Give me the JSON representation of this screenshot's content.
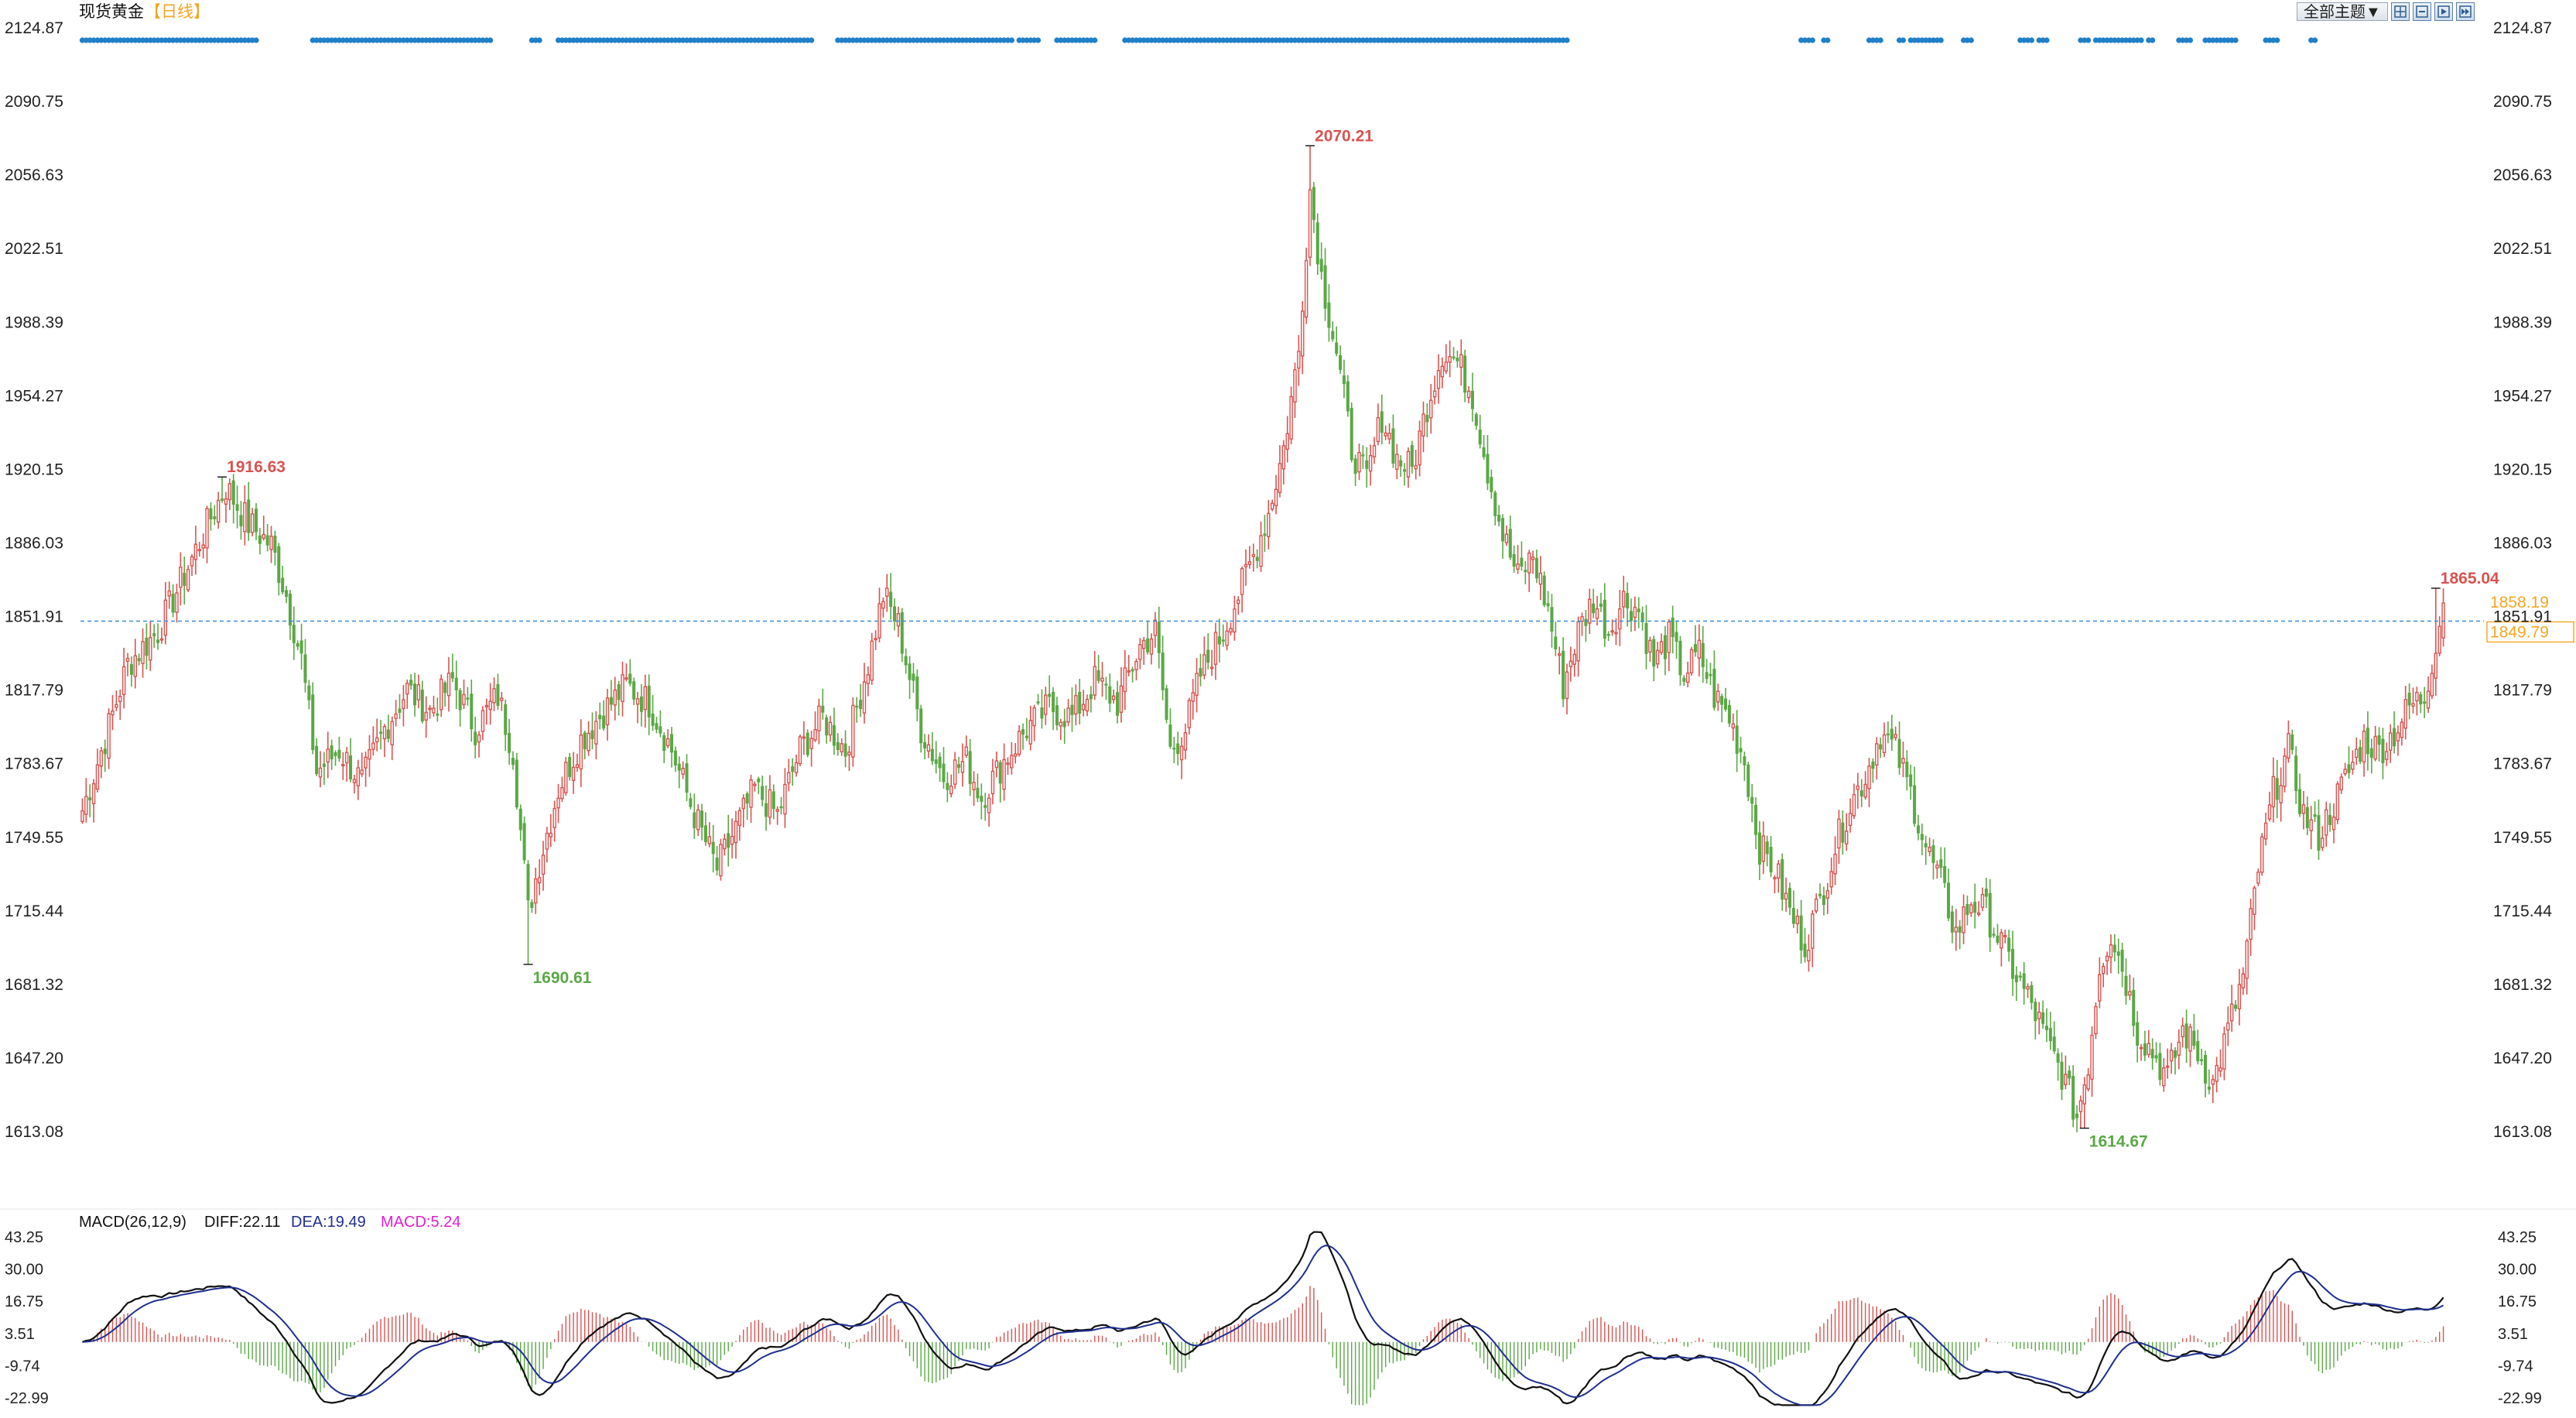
{
  "header": {
    "title": "现货黄金",
    "period": "【日线】",
    "theme_label": "全部主题▼"
  },
  "colors": {
    "up": "#d9534f",
    "down": "#5aa845",
    "grid_text": "#222222",
    "price_line": "#3a8ed6",
    "last_price_tag": "#f5a623",
    "diff_line": "#111111",
    "dea_line": "#1f2f8f",
    "macd_label": "#e020d0",
    "event_dots": "#1f7fc8"
  },
  "chart_data": [
    {
      "type": "candlestick",
      "title": "现货黄金 【日线】",
      "y_ticks": [
        "2124.87",
        "2090.75",
        "2056.63",
        "2022.51",
        "1988.39",
        "1954.27",
        "1920.15",
        "1886.03",
        "1851.91",
        "1817.79",
        "1783.67",
        "1749.55",
        "1715.44",
        "1681.32",
        "1647.20",
        "1613.08"
      ],
      "ylim": [
        1613.08,
        2124.87
      ],
      "current_price_line": 1849.79,
      "last_price_label": "1858.19",
      "current_price_label": "1849.79",
      "annotations": [
        {
          "label": "1916.63",
          "kind": "high",
          "value": 1916.63,
          "index": 37
        },
        {
          "label": "1690.61",
          "kind": "low",
          "value": 1690.61,
          "index": 118
        },
        {
          "label": "2070.21",
          "kind": "high",
          "value": 2070.21,
          "index": 325
        },
        {
          "label": "1614.67",
          "kind": "low",
          "value": 1614.67,
          "index": 530
        },
        {
          "label": "1865.04",
          "kind": "high",
          "value": 1865.04,
          "index": 623
        }
      ],
      "anchors": [
        [
          0,
          1762
        ],
        [
          6,
          1795
        ],
        [
          12,
          1830
        ],
        [
          20,
          1845
        ],
        [
          28,
          1875
        ],
        [
          34,
          1898
        ],
        [
          38,
          1912
        ],
        [
          44,
          1895
        ],
        [
          50,
          1885
        ],
        [
          54,
          1862
        ],
        [
          58,
          1832
        ],
        [
          62,
          1780
        ],
        [
          68,
          1790
        ],
        [
          74,
          1775
        ],
        [
          80,
          1800
        ],
        [
          86,
          1818
        ],
        [
          92,
          1808
        ],
        [
          98,
          1822
        ],
        [
          104,
          1800
        ],
        [
          110,
          1815
        ],
        [
          114,
          1790
        ],
        [
          118,
          1715
        ],
        [
          121,
          1738
        ],
        [
          126,
          1772
        ],
        [
          132,
          1795
        ],
        [
          138,
          1808
        ],
        [
          144,
          1820
        ],
        [
          150,
          1812
        ],
        [
          156,
          1790
        ],
        [
          162,
          1760
        ],
        [
          168,
          1735
        ],
        [
          172,
          1750
        ],
        [
          178,
          1772
        ],
        [
          184,
          1760
        ],
        [
          190,
          1790
        ],
        [
          196,
          1805
        ],
        [
          202,
          1790
        ],
        [
          208,
          1830
        ],
        [
          212,
          1862
        ],
        [
          216,
          1848
        ],
        [
          222,
          1800
        ],
        [
          228,
          1778
        ],
        [
          234,
          1785
        ],
        [
          238,
          1768
        ],
        [
          244,
          1785
        ],
        [
          250,
          1800
        ],
        [
          256,
          1810
        ],
        [
          262,
          1805
        ],
        [
          268,
          1822
        ],
        [
          274,
          1812
        ],
        [
          280,
          1838
        ],
        [
          284,
          1845
        ],
        [
          288,
          1790
        ],
        [
          292,
          1800
        ],
        [
          296,
          1825
        ],
        [
          302,
          1845
        ],
        [
          306,
          1862
        ],
        [
          310,
          1880
        ],
        [
          314,
          1900
        ],
        [
          318,
          1930
        ],
        [
          322,
          1975
        ],
        [
          325,
          2050
        ],
        [
          328,
          2010
        ],
        [
          332,
          1975
        ],
        [
          336,
          1930
        ],
        [
          340,
          1915
        ],
        [
          344,
          1945
        ],
        [
          348,
          1925
        ],
        [
          352,
          1920
        ],
        [
          356,
          1950
        ],
        [
          360,
          1975
        ],
        [
          364,
          1970
        ],
        [
          368,
          1955
        ],
        [
          372,
          1920
        ],
        [
          376,
          1890
        ],
        [
          380,
          1870
        ],
        [
          384,
          1880
        ],
        [
          388,
          1855
        ],
        [
          392,
          1820
        ],
        [
          396,
          1845
        ],
        [
          400,
          1860
        ],
        [
          404,
          1845
        ],
        [
          408,
          1860
        ],
        [
          412,
          1855
        ],
        [
          416,
          1830
        ],
        [
          420,
          1842
        ],
        [
          424,
          1825
        ],
        [
          428,
          1835
        ],
        [
          432,
          1815
        ],
        [
          436,
          1805
        ],
        [
          440,
          1785
        ],
        [
          444,
          1745
        ],
        [
          448,
          1735
        ],
        [
          452,
          1715
        ],
        [
          456,
          1700
        ],
        [
          460,
          1720
        ],
        [
          464,
          1745
        ],
        [
          468,
          1765
        ],
        [
          472,
          1778
        ],
        [
          476,
          1798
        ],
        [
          480,
          1790
        ],
        [
          484,
          1770
        ],
        [
          488,
          1745
        ],
        [
          492,
          1728
        ],
        [
          496,
          1705
        ],
        [
          500,
          1720
        ],
        [
          504,
          1715
        ],
        [
          508,
          1700
        ],
        [
          512,
          1685
        ],
        [
          516,
          1672
        ],
        [
          520,
          1655
        ],
        [
          524,
          1640
        ],
        [
          528,
          1620
        ],
        [
          531,
          1645
        ],
        [
          534,
          1690
        ],
        [
          537,
          1705
        ],
        [
          540,
          1690
        ],
        [
          544,
          1660
        ],
        [
          548,
          1650
        ],
        [
          552,
          1638
        ],
        [
          556,
          1660
        ],
        [
          560,
          1650
        ],
        [
          564,
          1635
        ],
        [
          568,
          1660
        ],
        [
          572,
          1685
        ],
        [
          576,
          1735
        ],
        [
          580,
          1770
        ],
        [
          584,
          1790
        ],
        [
          588,
          1760
        ],
        [
          592,
          1750
        ],
        [
          596,
          1765
        ],
        [
          600,
          1780
        ],
        [
          604,
          1795
        ],
        [
          608,
          1790
        ],
        [
          612,
          1798
        ],
        [
          616,
          1810
        ],
        [
          620,
          1815
        ],
        [
          623,
          1840
        ],
        [
          625,
          1858
        ]
      ]
    },
    {
      "type": "line",
      "title": "MACD(26,12,9)",
      "indicator_label": "MACD(26,12,9)",
      "legend": [
        {
          "label": "DIFF:22.11",
          "value": 22.11
        },
        {
          "label": "DEA:19.49",
          "value": 19.49
        },
        {
          "label": "MACD:5.24",
          "value": 5.24
        }
      ],
      "y_ticks": [
        "43.25",
        "30.00",
        "16.75",
        "3.51",
        "-9.74",
        "-22.99"
      ],
      "ylim": [
        -22.99,
        43.25
      ],
      "series": [
        {
          "name": "DIFF",
          "values": "computed from candlestick closes, EMA(12)-EMA(26)"
        },
        {
          "name": "DEA",
          "values": "EMA(9) of DIFF"
        },
        {
          "name": "MACD",
          "values": "2*(DIFF-DEA) histogram"
        }
      ]
    }
  ]
}
